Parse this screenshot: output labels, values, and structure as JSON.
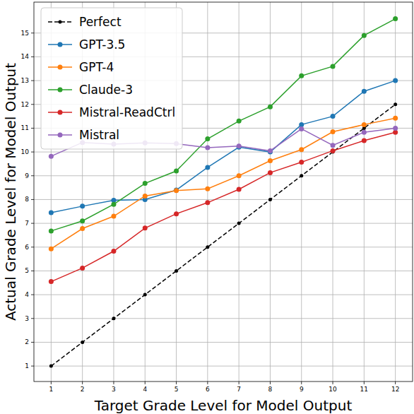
{
  "chart_data": {
    "type": "line",
    "x_label": "Target Grade Level for Model Output",
    "y_label": "Actual Grade Level for Model Output",
    "x": [
      1,
      2,
      3,
      4,
      5,
      6,
      7,
      8,
      9,
      10,
      11,
      12
    ],
    "xlim": [
      0.45,
      12.55
    ],
    "ylim": [
      0.35,
      16.3
    ],
    "xticks": [
      1,
      2,
      3,
      4,
      5,
      6,
      7,
      8,
      9,
      10,
      11,
      12
    ],
    "yticks": [
      1,
      2,
      3,
      4,
      5,
      6,
      7,
      8,
      9,
      10,
      11,
      12,
      13,
      14,
      15
    ],
    "grid": true,
    "legend": "upper left",
    "series": [
      {
        "name": "Perfect",
        "color": "#000000",
        "line_style": "dashed",
        "marker": "dot",
        "values": [
          1,
          2,
          3,
          4,
          5,
          6,
          7,
          8,
          9,
          10,
          11,
          12
        ]
      },
      {
        "name": "GPT-3.5",
        "color": "#1f77b4",
        "line_style": "solid",
        "marker": "circle",
        "values": [
          7.45,
          7.72,
          7.97,
          8.0,
          8.4,
          9.35,
          10.2,
          10.0,
          11.15,
          11.5,
          12.55,
          13.0
        ]
      },
      {
        "name": "GPT-4",
        "color": "#ff7f0e",
        "line_style": "solid",
        "marker": "circle",
        "values": [
          5.93,
          6.78,
          7.3,
          8.15,
          8.38,
          8.45,
          9.0,
          9.63,
          10.1,
          10.85,
          11.15,
          11.42
        ]
      },
      {
        "name": "Claude-3",
        "color": "#2ca02c",
        "line_style": "solid",
        "marker": "circle",
        "values": [
          6.68,
          7.1,
          7.8,
          8.68,
          9.2,
          10.55,
          11.3,
          11.9,
          13.2,
          13.6,
          14.9,
          15.6
        ]
      },
      {
        "name": "Mistral-ReadCtrl",
        "color": "#d62728",
        "line_style": "solid",
        "marker": "circle",
        "values": [
          4.55,
          5.12,
          5.83,
          6.8,
          7.4,
          7.87,
          8.43,
          9.13,
          9.57,
          10.05,
          10.48,
          10.83
        ]
      },
      {
        "name": "Mistral",
        "color": "#9467bd",
        "line_style": "solid",
        "marker": "circle",
        "values": [
          9.82,
          10.4,
          10.33,
          10.38,
          10.35,
          10.18,
          10.25,
          10.05,
          10.97,
          10.28,
          10.83,
          11.0
        ]
      }
    ]
  }
}
